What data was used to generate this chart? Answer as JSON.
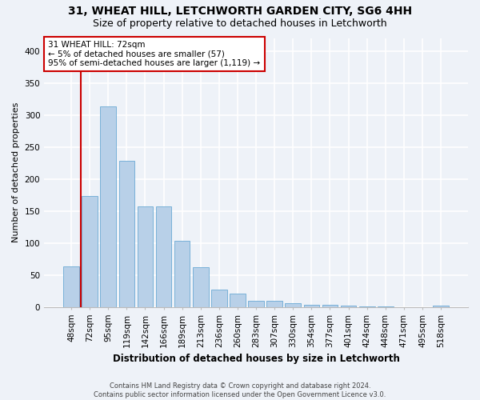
{
  "title1": "31, WHEAT HILL, LETCHWORTH GARDEN CITY, SG6 4HH",
  "title2": "Size of property relative to detached houses in Letchworth",
  "xlabel": "Distribution of detached houses by size in Letchworth",
  "ylabel": "Number of detached properties",
  "categories": [
    "48sqm",
    "72sqm",
    "95sqm",
    "119sqm",
    "142sqm",
    "166sqm",
    "189sqm",
    "213sqm",
    "236sqm",
    "260sqm",
    "283sqm",
    "307sqm",
    "330sqm",
    "354sqm",
    "377sqm",
    "401sqm",
    "424sqm",
    "448sqm",
    "471sqm",
    "495sqm",
    "518sqm"
  ],
  "values": [
    63,
    173,
    313,
    228,
    157,
    157,
    103,
    62,
    27,
    21,
    10,
    10,
    6,
    4,
    4,
    2,
    1,
    1,
    0,
    0,
    2
  ],
  "bar_color": "#b8d0e8",
  "bar_edge_color": "#6aaad4",
  "annotation_line1": "31 WHEAT HILL: 72sqm",
  "annotation_line2": "← 5% of detached houses are smaller (57)",
  "annotation_line3": "95% of semi-detached houses are larger (1,119) →",
  "annotation_box_color": "#ffffff",
  "annotation_box_edge_color": "#cc0000",
  "footer_text": "Contains HM Land Registry data © Crown copyright and database right 2024.\nContains public sector information licensed under the Open Government Licence v3.0.",
  "ylim": [
    0,
    420
  ],
  "yticks": [
    0,
    50,
    100,
    150,
    200,
    250,
    300,
    350,
    400
  ],
  "bg_color": "#eef2f8",
  "grid_color": "#ffffff",
  "vline_color": "#cc0000",
  "vline_bar_index": 1,
  "title_fontsize": 10,
  "subtitle_fontsize": 9,
  "xlabel_fontsize": 8.5,
  "ylabel_fontsize": 8,
  "tick_fontsize": 7.5,
  "annotation_fontsize": 7.5,
  "footer_fontsize": 6
}
